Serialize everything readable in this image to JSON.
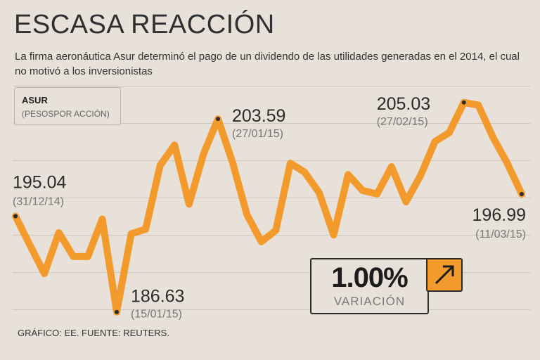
{
  "header": {
    "title": "ESCASA REACCIÓN",
    "subtitle": "La firma aeronáutica Asur determinó el pago de un dividendo de las utilidades generadas en el 2014, el cual no motivó a los inversionistas"
  },
  "legend": {
    "ticker": "ASUR",
    "unit": "(PESOSPOR ACCIÓN)"
  },
  "variation": {
    "value": "1.00%",
    "label": "VARIACIÓN",
    "icon": "arrow-up-right-icon"
  },
  "footer": {
    "source": "GRÁFICO: EE. FUENTE: REUTERS."
  },
  "colors": {
    "line": "#f39a2c",
    "background": "#e8e1d9",
    "grid": "#cfc6bc"
  },
  "chart_data": {
    "type": "line",
    "title": "ESCASA REACCIÓN",
    "xlabel": "",
    "ylabel": "",
    "grid": true,
    "ylim": [
      185.5,
      206.5
    ],
    "series": [
      {
        "name": "ASUR",
        "values": [
          195.04,
          192.5,
          190.0,
          193.6,
          191.5,
          191.5,
          194.8,
          186.63,
          193.5,
          193.9,
          199.5,
          201.3,
          196.1,
          200.5,
          203.59,
          199.8,
          195.2,
          192.8,
          193.8,
          199.7,
          198.9,
          197.1,
          193.4,
          198.7,
          197.3,
          197.0,
          199.4,
          196.3,
          198.6,
          201.6,
          202.4,
          205.03,
          204.8,
          202.0,
          199.7,
          196.99
        ]
      }
    ],
    "annotations": [
      {
        "value": "195.04",
        "date": "(31/12/14)"
      },
      {
        "value": "186.63",
        "date": "(15/01/15)"
      },
      {
        "value": "203.59",
        "date": "(27/01/15)"
      },
      {
        "value": "205.03",
        "date": "(27/02/15)"
      },
      {
        "value": "196.99",
        "date": "(11/03/15)"
      }
    ]
  }
}
